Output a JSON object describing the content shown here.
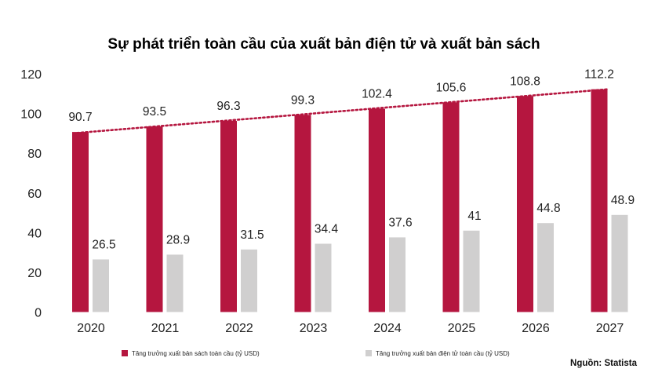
{
  "chart_data": {
    "type": "bar",
    "title": "Sự phát triển toàn cầu của xuất bản điện tử và xuất bản sách",
    "categories": [
      "2020",
      "2021",
      "2022",
      "2023",
      "2024",
      "2025",
      "2026",
      "2027"
    ],
    "series": [
      {
        "name": "Tăng trưởng xuất bản sách toàn cầu (tỷ USD)",
        "color": "#b5163f",
        "values": [
          90.7,
          93.5,
          96.3,
          99.3,
          102.4,
          105.6,
          108.8,
          112.2
        ],
        "labels": [
          "90.7",
          "93.5",
          "96.3",
          "99.3",
          "102.4",
          "105.6",
          "108.8",
          "112.2"
        ]
      },
      {
        "name": "Tăng trưởng xuất bản điện tử toàn cầu (tỷ USD)",
        "color": "#d0cfcf",
        "values": [
          26.5,
          28.9,
          31.5,
          34.4,
          37.6,
          41,
          44.8,
          48.9
        ],
        "labels": [
          "26.5",
          "28.9",
          "31.5",
          "34.4",
          "37.6",
          "41",
          "44.8",
          "48.9"
        ]
      }
    ],
    "trendline": {
      "series": 0,
      "style": "dotted",
      "color": "#b5163f"
    },
    "yticks": [
      "0",
      "20",
      "40",
      "60",
      "80",
      "100",
      "120"
    ],
    "ylim": [
      0,
      120
    ],
    "xlabel": "",
    "ylabel": "",
    "grid": false,
    "legend_position": "bottom",
    "source": "Nguồn: Statista"
  }
}
